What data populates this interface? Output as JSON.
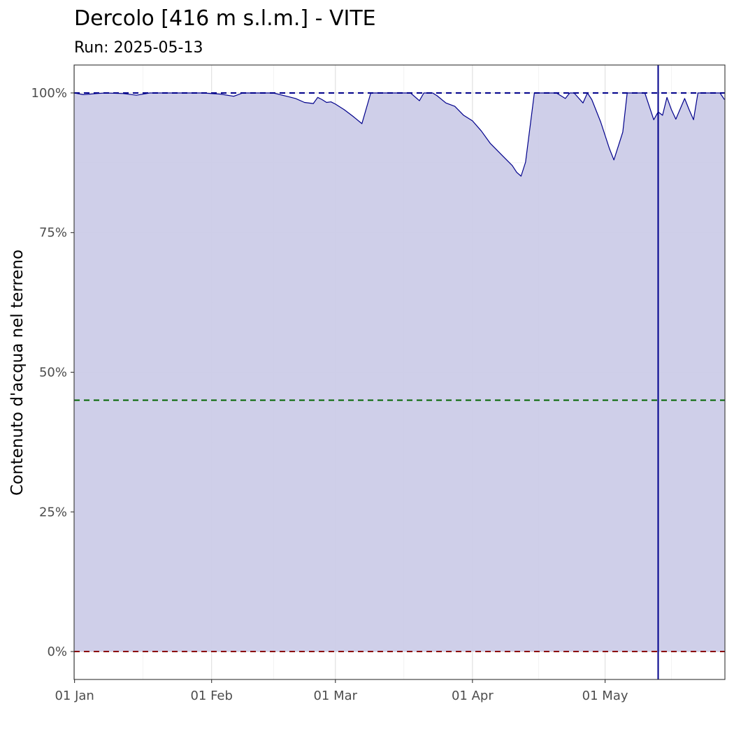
{
  "title": "Dercolo [416 m s.l.m.] - VITE",
  "subtitle": "Run: 2025-05-13",
  "colors": {
    "fill": "#cccce8",
    "line": "#00008b",
    "upper_threshold": "#00008b",
    "middle_threshold": "#006400",
    "lower_threshold": "#8b0000",
    "run_marker": "#00008b"
  },
  "chart_data": {
    "type": "area",
    "xlabel": "",
    "ylabel": "Contenuto d'acqua nel terreno",
    "x_tick_labels": [
      "01 Jan",
      "01 Feb",
      "01 Mar",
      "01 Apr",
      "01 May"
    ],
    "x_ticks": [
      "2025-01-01",
      "2025-02-01",
      "2025-03-01",
      "2025-04-01",
      "2025-05-01"
    ],
    "y_tick_labels": [
      "0%",
      "25%",
      "50%",
      "75%",
      "100%"
    ],
    "y_ticks": [
      0,
      25,
      50,
      75,
      100
    ],
    "xlim": [
      "2025-01-01",
      "2025-05-28"
    ],
    "ylim": [
      -5,
      105
    ],
    "grid": true,
    "hlines": [
      {
        "value": 100,
        "style": "dashed",
        "color": "#00008b"
      },
      {
        "value": 45,
        "style": "dashed",
        "color": "#006400"
      },
      {
        "value": 0,
        "style": "dashed",
        "color": "#8b0000"
      }
    ],
    "vline": {
      "x": "2025-05-13",
      "color": "#00008b"
    },
    "x": [
      "2025-01-01",
      "2025-01-03",
      "2025-01-06",
      "2025-01-08",
      "2025-01-12",
      "2025-01-15",
      "2025-01-18",
      "2025-01-19",
      "2025-01-21",
      "2025-01-25",
      "2025-01-30",
      "2025-02-03",
      "2025-02-06",
      "2025-02-07",
      "2025-02-08",
      "2025-02-15",
      "2025-02-17",
      "2025-02-18",
      "2025-02-20",
      "2025-02-22",
      "2025-02-24",
      "2025-02-25",
      "2025-02-26",
      "2025-02-27",
      "2025-02-28",
      "2025-03-01",
      "2025-03-03",
      "2025-03-05",
      "2025-03-07",
      "2025-03-09",
      "2025-03-10",
      "2025-03-18",
      "2025-03-20",
      "2025-03-21",
      "2025-03-23",
      "2025-03-24",
      "2025-03-26",
      "2025-03-28",
      "2025-03-30",
      "2025-04-01",
      "2025-04-03",
      "2025-04-05",
      "2025-04-08",
      "2025-04-10",
      "2025-04-11",
      "2025-04-12",
      "2025-04-13",
      "2025-04-15",
      "2025-04-16",
      "2025-04-20",
      "2025-04-22",
      "2025-04-23",
      "2025-04-24",
      "2025-04-26",
      "2025-04-27",
      "2025-04-28",
      "2025-04-30",
      "2025-05-02",
      "2025-05-03",
      "2025-05-05",
      "2025-05-06",
      "2025-05-07",
      "2025-05-10",
      "2025-05-12",
      "2025-05-13",
      "2025-05-14",
      "2025-05-15",
      "2025-05-16",
      "2025-05-17",
      "2025-05-19",
      "2025-05-20",
      "2025-05-21",
      "2025-05-22",
      "2025-05-26",
      "2025-05-27",
      "2025-05-28"
    ],
    "series": [
      {
        "values": [
          100,
          99.7,
          99.9,
          100,
          99.9,
          99.6,
          100,
          100,
          100,
          100,
          100,
          99.8,
          99.4,
          99.7,
          100,
          100,
          99.6,
          99.4,
          99.0,
          98.3,
          98.1,
          99.2,
          98.8,
          98.3,
          98.4,
          98.0,
          97.0,
          95.8,
          94.5,
          100,
          100,
          100,
          98.6,
          100,
          100,
          99.5,
          98.2,
          97.6,
          96.0,
          95.0,
          93.2,
          91.0,
          88.6,
          87.0,
          85.8,
          85.1,
          87.6,
          100,
          100,
          100,
          99.0,
          100,
          100,
          98.2,
          100,
          98.8,
          94.8,
          90.0,
          88.0,
          93.0,
          100,
          100,
          100,
          95.2,
          96.6,
          96.0,
          99.2,
          97.0,
          95.3,
          99.0,
          97.0,
          95.2,
          100,
          100,
          100,
          98.8
        ]
      }
    ]
  }
}
